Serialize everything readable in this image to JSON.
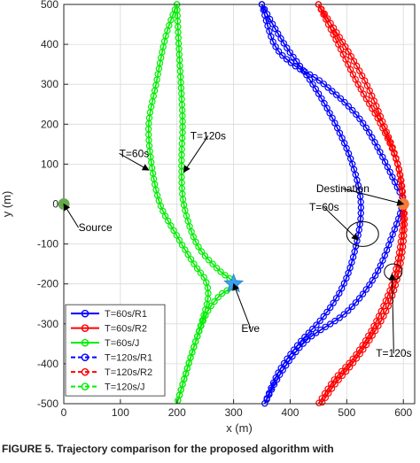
{
  "caption": "FIGURE 5. Trajectory comparison for the proposed algorithm with",
  "chart_data": {
    "type": "line",
    "xlabel": "x (m)",
    "ylabel": "y (m)",
    "xlim": [
      0,
      620
    ],
    "ylim": [
      -500,
      500
    ],
    "xticks": [
      0,
      100,
      200,
      300,
      400,
      500,
      600
    ],
    "yticks": [
      -500,
      -400,
      -300,
      -200,
      -100,
      0,
      100,
      200,
      300,
      400,
      500
    ],
    "grid": true,
    "legend": "bottom-left",
    "colors": {
      "blue": "#0000ff",
      "red": "#ff0000",
      "green": "#00ee00",
      "source": "#6aa84f",
      "destination": "#f07d3c",
      "eve": "#3aa0f0"
    },
    "series": [
      {
        "name": "T=60s/R1",
        "color": "#0000ff",
        "points": [
          [
            350,
            500
          ],
          [
            372,
            400
          ],
          [
            405,
            350
          ],
          [
            460,
            300
          ],
          [
            530,
            200
          ],
          [
            590,
            40
          ],
          [
            598,
            0
          ],
          [
            580,
            -80
          ],
          [
            550,
            -180
          ],
          [
            500,
            -270
          ],
          [
            430,
            -340
          ],
          [
            385,
            -420
          ],
          [
            355,
            -500
          ]
        ]
      },
      {
        "name": "T=60s/R2",
        "color": "#ff0000",
        "points": [
          [
            450,
            500
          ],
          [
            485,
            400
          ],
          [
            520,
            300
          ],
          [
            560,
            200
          ],
          [
            590,
            100
          ],
          [
            600,
            0
          ],
          [
            595,
            -100
          ],
          [
            580,
            -200
          ],
          [
            550,
            -300
          ],
          [
            515,
            -380
          ],
          [
            478,
            -440
          ],
          [
            450,
            -500
          ]
        ]
      },
      {
        "name": "T=60s/J",
        "color": "#00ee00",
        "points": [
          [
            200,
            500
          ],
          [
            180,
            420
          ],
          [
            163,
            300
          ],
          [
            150,
            200
          ],
          [
            155,
            100
          ],
          [
            170,
            0
          ],
          [
            200,
            -80
          ],
          [
            230,
            -150
          ],
          [
            250,
            -190
          ],
          [
            255,
            -230
          ],
          [
            247,
            -280
          ],
          [
            225,
            -380
          ],
          [
            200,
            -500
          ]
        ]
      },
      {
        "name": "T=120s/R1",
        "color": "#0000ff",
        "points": [
          [
            350,
            500
          ],
          [
            390,
            400
          ],
          [
            440,
            300
          ],
          [
            480,
            200
          ],
          [
            510,
            100
          ],
          [
            525,
            0
          ],
          [
            517,
            -100
          ],
          [
            495,
            -200
          ],
          [
            460,
            -280
          ],
          [
            415,
            -350
          ],
          [
            380,
            -420
          ],
          [
            355,
            -500
          ]
        ]
      },
      {
        "name": "T=120s/R2",
        "color": "#ff0000",
        "points": [
          [
            450,
            500
          ],
          [
            495,
            400
          ],
          [
            535,
            300
          ],
          [
            565,
            200
          ],
          [
            590,
            100
          ],
          [
            600,
            0
          ],
          [
            602,
            -50
          ],
          [
            595,
            -150
          ],
          [
            575,
            -250
          ],
          [
            545,
            -330
          ],
          [
            510,
            -400
          ],
          [
            480,
            -450
          ],
          [
            455,
            -500
          ]
        ]
      },
      {
        "name": "T=120s/J",
        "color": "#00ee00",
        "points": [
          [
            200,
            500
          ],
          [
            203,
            400
          ],
          [
            207,
            300
          ],
          [
            210,
            200
          ],
          [
            208,
            100
          ],
          [
            212,
            0
          ],
          [
            235,
            -100
          ],
          [
            270,
            -160
          ],
          [
            300,
            -200
          ],
          [
            275,
            -230
          ],
          [
            250,
            -280
          ],
          [
            225,
            -380
          ],
          [
            200,
            -500
          ]
        ]
      }
    ],
    "markers": [
      {
        "name": "Source",
        "x": 0,
        "y": 0,
        "color": "#6aa84f",
        "shape": "circle"
      },
      {
        "name": "Destination",
        "x": 600,
        "y": 0,
        "color": "#f07d3c",
        "shape": "circle"
      },
      {
        "name": "Eve",
        "x": 300,
        "y": -200,
        "color": "#3aa0f0",
        "shape": "star"
      }
    ],
    "annotations": [
      {
        "text": "T=60s",
        "x": 150,
        "y": 85,
        "tx": 98,
        "ty": 118,
        "anchor": "start"
      },
      {
        "text": "T=120s",
        "x": 212,
        "y": 80,
        "tx": 255,
        "ty": 162,
        "anchor": "middle"
      },
      {
        "text": "Source",
        "x": 0,
        "y": 0,
        "tx": 26,
        "ty": -68,
        "anchor": "start"
      },
      {
        "text": "Eve",
        "x": 300,
        "y": -200,
        "tx": 330,
        "ty": -320,
        "anchor": "middle"
      },
      {
        "text": "Destination",
        "x": 600,
        "y": 0,
        "tx": 493,
        "ty": 30,
        "anchor": "middle"
      },
      {
        "text": "T=60s",
        "x": 520,
        "y": -90,
        "tx": 460,
        "ty": -17,
        "anchor": "middle"
      },
      {
        "text": "T=120s",
        "x": 580,
        "y": -175,
        "tx": 583,
        "ty": -383,
        "anchor": "middle"
      }
    ]
  }
}
